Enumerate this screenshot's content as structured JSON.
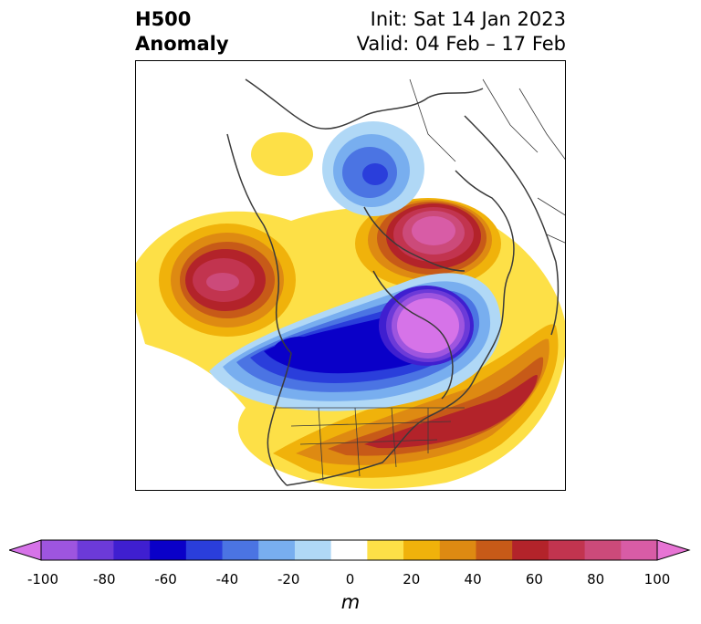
{
  "header": {
    "title_line1": "H500",
    "title_line2": "Anomaly",
    "init_text": "Init: Sat 14 Jan 2023",
    "valid_text": "Valid: 04 Feb – 17 Feb"
  },
  "colorbar": {
    "units": "m",
    "tick_labels": [
      "-100",
      "-80",
      "-60",
      "-40",
      "-20",
      "0",
      "20",
      "40",
      "60",
      "80",
      "100"
    ],
    "colors": [
      "#d673e8",
      "#9e55df",
      "#6c3ad8",
      "#3f1fd0",
      "#0a00c8",
      "#2a3edb",
      "#4b74e3",
      "#78aeef",
      "#b0d8f6",
      "#ffffff",
      "#fde047",
      "#f0b20b",
      "#de8a12",
      "#c75a18",
      "#b3232a",
      "#c2344f",
      "#cc4a7a",
      "#d85ca6",
      "#e774d4"
    ]
  },
  "map": {
    "region": "North America / North Pacific / Arctic",
    "features": [
      {
        "label": "ridge-north-pacific",
        "sign": "positive",
        "peak_m": 70
      },
      {
        "label": "ridge-greenland",
        "sign": "positive",
        "peak_m": 90
      },
      {
        "label": "ridge-southeast-us-atlantic",
        "sign": "positive",
        "peak_m": 60
      },
      {
        "label": "trough-canada-hudson-bay",
        "sign": "negative",
        "peak_m": -100
      },
      {
        "label": "trough-siberia-arctic",
        "sign": "negative",
        "peak_m": -50
      },
      {
        "label": "ridge-northeast-siberia",
        "sign": "positive",
        "peak_m": 20
      }
    ]
  }
}
